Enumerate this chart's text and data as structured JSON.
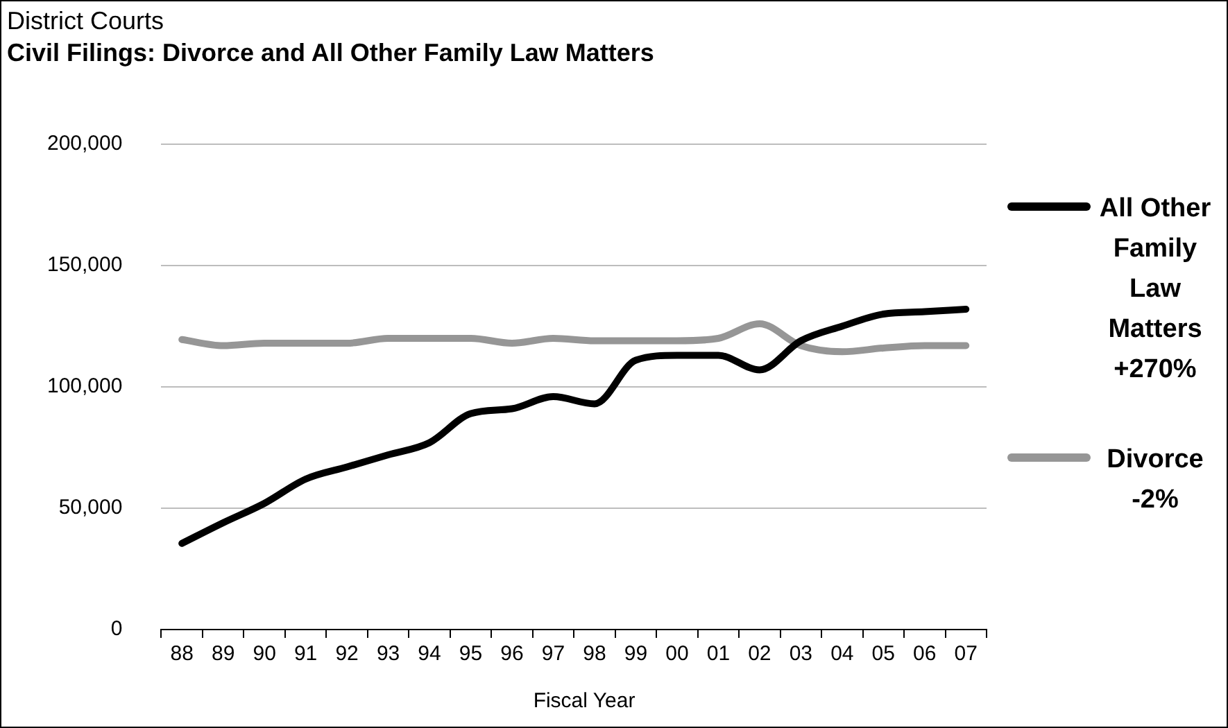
{
  "chart_data": {
    "type": "line",
    "subtitle": "District Courts",
    "title": "Civil Filings: Divorce and All Other Family Law Matters",
    "xlabel": "Fiscal Year",
    "categories": [
      "88",
      "89",
      "90",
      "91",
      "92",
      "93",
      "94",
      "95",
      "96",
      "97",
      "98",
      "99",
      "00",
      "01",
      "02",
      "03",
      "04",
      "05",
      "06",
      "07"
    ],
    "series": [
      {
        "name": "All Other Family Law Matters +270%",
        "color": "#000000",
        "values": [
          35500,
          44000,
          52000,
          62000,
          67000,
          72000,
          77000,
          89000,
          91000,
          96000,
          93000,
          111000,
          113000,
          113000,
          107000,
          119000,
          125000,
          130000,
          131000,
          132000
        ]
      },
      {
        "name": "Divorce -2%",
        "color": "#969696",
        "values": [
          119500,
          117000,
          118000,
          118000,
          118000,
          120000,
          120000,
          120000,
          118000,
          120000,
          119000,
          119000,
          119000,
          120000,
          126000,
          117000,
          114500,
          116000,
          117000,
          117000
        ]
      }
    ],
    "ylim": [
      0,
      200000
    ],
    "yticks": [
      0,
      {
        "value": 50000,
        "label": "50,000"
      },
      {
        "value": 100000,
        "label": "100,000"
      },
      {
        "value": 150000,
        "label": "150,000"
      },
      {
        "value": 200000,
        "label": "200,000"
      }
    ],
    "grid": "y",
    "legend": "right",
    "marker": "none",
    "line_style": "solid"
  }
}
